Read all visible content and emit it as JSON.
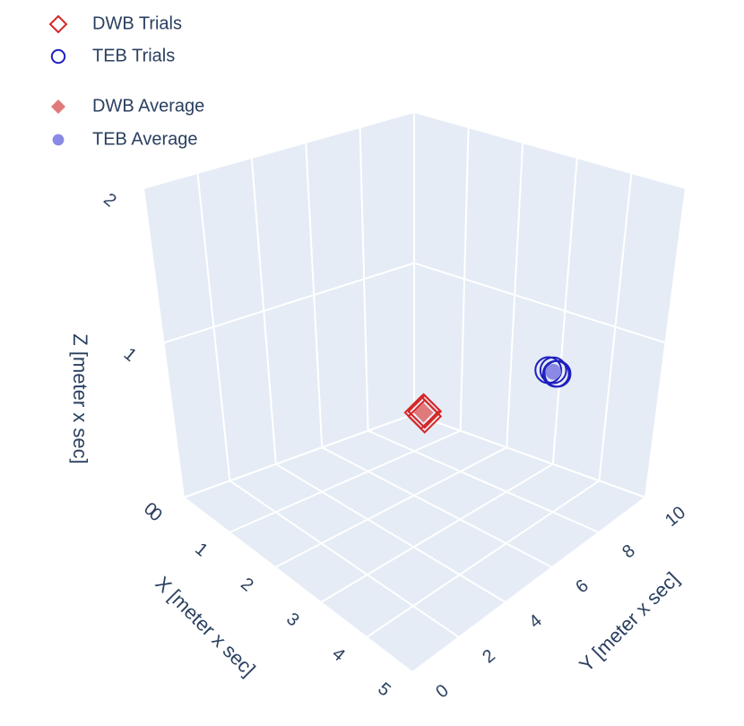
{
  "chart_data": {
    "type": "scatter3d",
    "xaxis_title": "X [meter x sec]",
    "yaxis_title": "Y [meter x sec]",
    "zaxis_title": "Z [meter x sec]",
    "xlim": [
      0,
      5
    ],
    "ylim": [
      0,
      10
    ],
    "zlim": [
      0,
      2
    ],
    "xticks": [
      0,
      1,
      2,
      3,
      4,
      5
    ],
    "yticks": [
      0,
      2,
      4,
      6,
      8,
      10
    ],
    "zticks": [
      0,
      1,
      2
    ],
    "grid": true,
    "legend_position": "top-left",
    "series": [
      {
        "name": "DWB Trials",
        "color": "#d62728",
        "symbol": "diamond",
        "filled": false,
        "x": [
          0.55,
          0.6,
          0.65,
          0.6
        ],
        "y": [
          9.2,
          9.25,
          9.15,
          9.2
        ],
        "z": [
          0.12,
          0.13,
          0.11,
          0.14
        ]
      },
      {
        "name": "TEB Trials",
        "color": "#1f1fbf",
        "symbol": "circle",
        "filled": false,
        "x": [
          2.9,
          3.0,
          3.05,
          3.1
        ],
        "y": [
          9.7,
          9.7,
          9.72,
          9.68
        ],
        "z": [
          0.63,
          0.64,
          0.62,
          0.63
        ]
      },
      {
        "name": "DWB Average",
        "color": "#e07a7a",
        "symbol": "diamond",
        "filled": true,
        "x": [
          0.6
        ],
        "y": [
          9.2
        ],
        "z": [
          0.125
        ]
      },
      {
        "name": "TEB Average",
        "color": "#8a8ae6",
        "symbol": "circle",
        "filled": true,
        "x": [
          3.0
        ],
        "y": [
          9.7
        ],
        "z": [
          0.63
        ]
      }
    ]
  }
}
